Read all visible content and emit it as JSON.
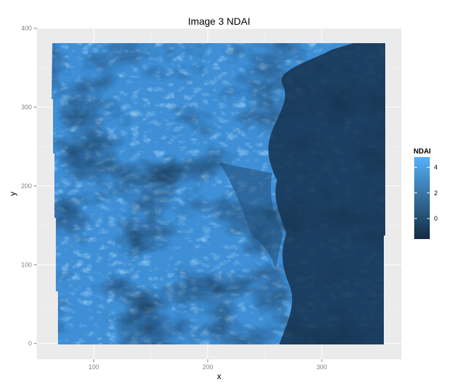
{
  "chart_data": {
    "type": "heatmap",
    "title": "Image 3 NDAI",
    "xlabel": "x",
    "ylabel": "y",
    "xlim": [
      50,
      370
    ],
    "ylim": [
      -20,
      400
    ],
    "x_ticks": [
      100,
      200,
      300
    ],
    "y_ticks": [
      0,
      100,
      200,
      300,
      400
    ],
    "panel_background": "#ebebeb",
    "grid": true,
    "legend": {
      "title": "NDAI",
      "position": "right",
      "ticks": [
        0,
        2,
        4
      ],
      "range": [
        -1.6,
        4.8
      ],
      "color_low": "#132b43",
      "color_high": "#56b1f7"
    },
    "data_extent": {
      "x": [
        65,
        370
      ],
      "y": [
        0,
        383
      ]
    },
    "value_regions": [
      {
        "description": "left and lower region",
        "ndai_approx": 3.5
      },
      {
        "description": "right region (x > 290, y 100-340)",
        "ndai_approx": -0.5
      }
    ]
  }
}
